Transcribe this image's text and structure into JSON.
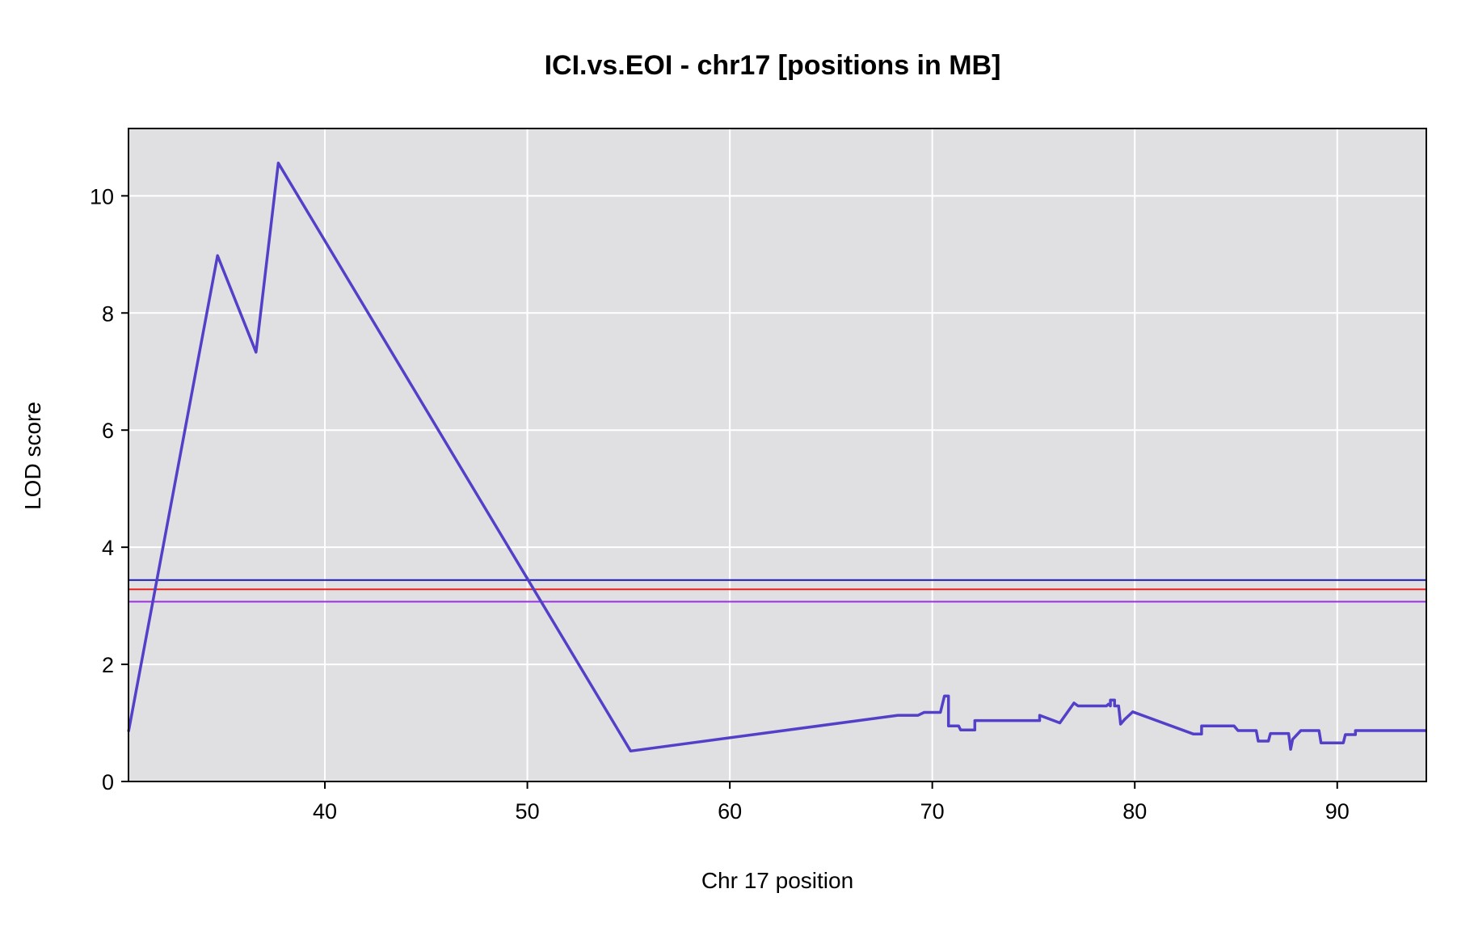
{
  "chart_data": {
    "type": "line",
    "title": "ICI.vs.EOI - chr17 [positions in MB]",
    "xlabel": "Chr 17 position",
    "ylabel": "LOD score",
    "xlim": [
      30.3,
      94.4
    ],
    "ylim": [
      0,
      11.15
    ],
    "xticks": [
      40,
      50,
      60,
      70,
      80,
      90
    ],
    "yticks": [
      0,
      2,
      4,
      6,
      8,
      10
    ],
    "grid": true,
    "background": "#e0e0e2",
    "thresholds": [
      {
        "value": 3.44,
        "color": "#1b1bb0"
      },
      {
        "value": 3.28,
        "color": "#e8231f"
      },
      {
        "value": 3.07,
        "color": "#9b30e0"
      }
    ],
    "series": [
      {
        "color": "#5340c8",
        "x": [
          30.3,
          34.7,
          36.6,
          37.7,
          55.1,
          68.3,
          69.3,
          69.6,
          70.4,
          70.6,
          70.8,
          70.8,
          71.3,
          71.4,
          72.1,
          72.1,
          75.3,
          75.3,
          76.3,
          77.0,
          77.2,
          78.6,
          78.7,
          78.8,
          78.8,
          79.0,
          79.0,
          79.2,
          79.3,
          79.5,
          79.9,
          82.9,
          83.3,
          83.3,
          84.9,
          85.1,
          86.0,
          86.1,
          86.6,
          86.7,
          87.6,
          87.7,
          87.8,
          88.2,
          89.1,
          89.2,
          90.3,
          90.4,
          90.9,
          90.9,
          94.4
        ],
        "y": [
          0.85,
          8.98,
          7.33,
          10.56,
          0.52,
          1.13,
          1.13,
          1.18,
          1.18,
          1.46,
          1.46,
          0.95,
          0.95,
          0.88,
          0.88,
          1.04,
          1.04,
          1.13,
          1.0,
          1.34,
          1.29,
          1.29,
          1.32,
          1.29,
          1.39,
          1.39,
          1.29,
          1.29,
          0.98,
          1.06,
          1.19,
          0.81,
          0.81,
          0.95,
          0.95,
          0.87,
          0.87,
          0.69,
          0.69,
          0.82,
          0.82,
          0.55,
          0.72,
          0.87,
          0.87,
          0.66,
          0.66,
          0.8,
          0.8,
          0.87,
          0.87
        ]
      }
    ]
  }
}
